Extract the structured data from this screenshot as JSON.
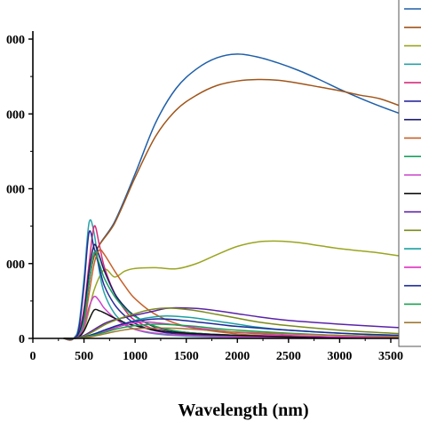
{
  "chart_data": {
    "type": "line",
    "title": "",
    "xlabel": "Wavelength (nm)",
    "ylabel": "",
    "xlim": [
      0,
      3700
    ],
    "ylim": [
      0,
      4000
    ],
    "x_ticks": [
      0,
      500,
      1000,
      1500,
      2000,
      2500,
      3000,
      3500
    ],
    "y_ticks": [
      0,
      1000,
      2000,
      3000,
      4000
    ],
    "x_tick_labels": [
      "0",
      "500",
      "1000",
      "1500",
      "2000",
      "2500",
      "3000",
      "3500"
    ],
    "y_tick_labels": [
      "0",
      "000",
      "000",
      "000",
      "000"
    ],
    "grid": false,
    "legend": {
      "placement": "right",
      "entries": 18
    },
    "series": [
      {
        "color": "#1f5fa8",
        "x": [
          300,
          400,
          500,
          600,
          800,
          1000,
          1200,
          1400,
          1600,
          1800,
          2000,
          2200,
          2400,
          2600,
          2800,
          3000,
          3200,
          3400,
          3700
        ],
        "y": [
          0,
          0,
          300,
          1100,
          1560,
          2200,
          2880,
          3340,
          3600,
          3750,
          3800,
          3760,
          3680,
          3580,
          3460,
          3330,
          3210,
          3100,
          2950
        ]
      },
      {
        "color": "#a0551a",
        "x": [
          300,
          400,
          500,
          600,
          800,
          1000,
          1200,
          1400,
          1600,
          1800,
          2000,
          2200,
          2400,
          2600,
          2800,
          3000,
          3200,
          3400,
          3700
        ],
        "y": [
          0,
          0,
          300,
          1100,
          1540,
          2150,
          2700,
          3050,
          3250,
          3380,
          3440,
          3460,
          3450,
          3410,
          3360,
          3310,
          3250,
          3200,
          3050
        ]
      },
      {
        "color": "#9aa51f",
        "x": [
          300,
          400,
          500,
          600,
          700,
          800,
          900,
          1000,
          1200,
          1400,
          1600,
          1800,
          2000,
          2200,
          2400,
          2600,
          2800,
          3000,
          3200,
          3400,
          3700
        ],
        "y": [
          0,
          0,
          130,
          650,
          920,
          820,
          900,
          935,
          945,
          930,
          1000,
          1120,
          1230,
          1290,
          1300,
          1280,
          1240,
          1200,
          1170,
          1140,
          1080
        ]
      },
      {
        "color": "#2aa1a9",
        "x": [
          300,
          400,
          450,
          500,
          550,
          600,
          650,
          700,
          800,
          900,
          1000,
          1200,
          1500,
          2000,
          2500,
          3000,
          3700
        ],
        "y": [
          0,
          0,
          180,
          800,
          1550,
          1400,
          900,
          600,
          330,
          200,
          120,
          60,
          30,
          15,
          10,
          5,
          3
        ]
      },
      {
        "color": "#d62d7a",
        "x": [
          300,
          400,
          450,
          500,
          550,
          600,
          650,
          700,
          800,
          900,
          1000,
          1200,
          1500,
          2000,
          2500,
          3000,
          3700
        ],
        "y": [
          0,
          0,
          100,
          400,
          1000,
          1500,
          1250,
          950,
          600,
          380,
          240,
          120,
          60,
          30,
          15,
          8,
          5
        ]
      },
      {
        "color": "#2a2a9c",
        "x": [
          300,
          400,
          450,
          500,
          550,
          600,
          650,
          700,
          800,
          900,
          1000,
          1200,
          1500,
          2000,
          2500,
          3000,
          3700
        ],
        "y": [
          0,
          0,
          130,
          700,
          1420,
          1200,
          950,
          700,
          450,
          300,
          200,
          100,
          50,
          25,
          12,
          6,
          4
        ]
      },
      {
        "color": "#1a1a6a",
        "x": [
          300,
          400,
          450,
          500,
          550,
          600,
          650,
          700,
          800,
          900,
          1000,
          1200,
          1500,
          2000,
          2500,
          3000,
          3700
        ],
        "y": [
          0,
          0,
          60,
          330,
          900,
          1250,
          1100,
          900,
          600,
          420,
          300,
          150,
          80,
          40,
          20,
          10,
          6
        ]
      },
      {
        "color": "#c7602a",
        "x": [
          300,
          400,
          450,
          500,
          550,
          600,
          650,
          700,
          800,
          900,
          1000,
          1200,
          1500,
          2000,
          2500,
          3000,
          3700
        ],
        "y": [
          0,
          0,
          30,
          180,
          600,
          1000,
          1180,
          1120,
          900,
          700,
          530,
          320,
          160,
          60,
          25,
          10,
          6
        ]
      },
      {
        "color": "#1aa060",
        "x": [
          300,
          400,
          450,
          500,
          550,
          600,
          650,
          700,
          800,
          900,
          1000,
          1200,
          1500,
          2000,
          2500,
          3000,
          3700
        ],
        "y": [
          0,
          0,
          40,
          250,
          750,
          1150,
          1000,
          800,
          560,
          400,
          290,
          160,
          80,
          40,
          20,
          10,
          6
        ]
      },
      {
        "color": "#cc44cc",
        "x": [
          300,
          400,
          450,
          500,
          550,
          600,
          650,
          700,
          800,
          900,
          1000,
          1200,
          1500,
          2000,
          2500,
          3000,
          3700
        ],
        "y": [
          0,
          0,
          30,
          160,
          420,
          560,
          500,
          400,
          270,
          180,
          120,
          70,
          40,
          20,
          10,
          6,
          4
        ]
      },
      {
        "color": "#111111",
        "x": [
          300,
          400,
          450,
          500,
          550,
          600,
          650,
          700,
          800,
          900,
          1000,
          1200,
          1500,
          2000,
          2500,
          3000,
          3700
        ],
        "y": [
          0,
          0,
          20,
          100,
          250,
          380,
          370,
          340,
          270,
          210,
          170,
          110,
          70,
          40,
          20,
          10,
          6
        ]
      },
      {
        "color": "#5a22a8",
        "x": [
          300,
          400,
          500,
          600,
          700,
          800,
          900,
          1000,
          1100,
          1200,
          1300,
          1400,
          1600,
          1800,
          2000,
          2200,
          2500,
          3000,
          3500,
          3700
        ],
        "y": [
          0,
          0,
          40,
          120,
          200,
          250,
          280,
          310,
          340,
          370,
          400,
          410,
          400,
          370,
          330,
          290,
          240,
          190,
          150,
          140
        ]
      },
      {
        "color": "#7a8a1a",
        "x": [
          300,
          400,
          500,
          600,
          700,
          800,
          900,
          1000,
          1100,
          1200,
          1300,
          1400,
          1600,
          1800,
          2000,
          2200,
          2500,
          3000,
          3500,
          3700
        ],
        "y": [
          0,
          0,
          30,
          100,
          180,
          240,
          290,
          330,
          370,
          395,
          405,
          400,
          370,
          320,
          270,
          220,
          170,
          110,
          70,
          60
        ]
      },
      {
        "color": "#1aa0a0",
        "x": [
          300,
          400,
          500,
          600,
          700,
          800,
          900,
          1000,
          1100,
          1200,
          1300,
          1400,
          1600,
          1800,
          2000,
          2200,
          2500,
          3000,
          3500,
          3700
        ],
        "y": [
          0,
          0,
          20,
          60,
          110,
          160,
          200,
          240,
          270,
          290,
          300,
          295,
          270,
          230,
          190,
          150,
          110,
          70,
          40,
          30
        ]
      },
      {
        "color": "#e030c0",
        "x": [
          300,
          400,
          500,
          600,
          700,
          800,
          900,
          1000,
          1100,
          1200,
          1400,
          1600,
          1800,
          2000,
          2500,
          3000,
          3500,
          3700
        ],
        "y": [
          0,
          0,
          15,
          45,
          90,
          140,
          180,
          210,
          220,
          210,
          180,
          140,
          110,
          80,
          40,
          20,
          10,
          8
        ]
      },
      {
        "color": "#1a2a9a",
        "x": [
          300,
          400,
          500,
          600,
          700,
          800,
          900,
          1000,
          1200,
          1400,
          1600,
          1800,
          2000,
          2500,
          3000,
          3500,
          3700
        ],
        "y": [
          0,
          0,
          20,
          60,
          110,
          160,
          200,
          230,
          260,
          250,
          220,
          190,
          160,
          110,
          70,
          45,
          40
        ]
      },
      {
        "color": "#1aa050",
        "x": [
          300,
          400,
          500,
          600,
          700,
          800,
          900,
          1000,
          1200,
          1400,
          1600,
          1800,
          2000,
          2500,
          3000,
          3500,
          3700
        ],
        "y": [
          0,
          0,
          15,
          45,
          80,
          120,
          150,
          170,
          190,
          180,
          160,
          130,
          110,
          70,
          40,
          25,
          20
        ]
      },
      {
        "color": "#a07830",
        "x": [
          300,
          400,
          500,
          600,
          700,
          800,
          900,
          1000,
          1200,
          1400,
          1600,
          1800,
          2000,
          2500,
          3000,
          3500,
          3700
        ],
        "y": [
          0,
          0,
          10,
          30,
          60,
          90,
          115,
          130,
          140,
          135,
          120,
          100,
          85,
          60,
          40,
          25,
          20
        ]
      }
    ]
  }
}
